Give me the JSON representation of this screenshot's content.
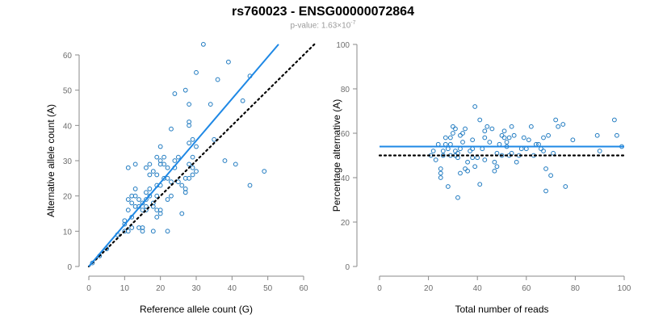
{
  "title": "rs760023 - ENSG00000072864",
  "subtitle": {
    "prefix": "p-value: 1.63×10",
    "exponent": "-7"
  },
  "colors": {
    "points": "#1f7ac0",
    "fit_line": "#1e88e5",
    "reference_line": "#000000",
    "axis": "#8a8a8a"
  },
  "chart_data": [
    {
      "type": "scatter",
      "xlabel": "Reference allele count (G)",
      "ylabel": "Alternative allele count (A)",
      "xlim": [
        0,
        60
      ],
      "ylim": [
        0,
        60
      ],
      "xticks": [
        "0",
        "10",
        "20",
        "30",
        "40",
        "50",
        "60"
      ],
      "yticks": [
        "0",
        "10",
        "20",
        "30",
        "40",
        "50",
        "60"
      ],
      "fit_line": {
        "style": "solid",
        "x": [
          0,
          53
        ],
        "y": [
          0,
          63
        ]
      },
      "reference_line": {
        "style": "dotted",
        "x": [
          0,
          63
        ],
        "y": [
          0,
          63
        ]
      },
      "points": [
        [
          1,
          1
        ],
        [
          3,
          3
        ],
        [
          5,
          5
        ],
        [
          8,
          9
        ],
        [
          10,
          10
        ],
        [
          10,
          12
        ],
        [
          10,
          13
        ],
        [
          11,
          10
        ],
        [
          11,
          16
        ],
        [
          11,
          19
        ],
        [
          11,
          28
        ],
        [
          12,
          11
        ],
        [
          12,
          14
        ],
        [
          12,
          18
        ],
        [
          12,
          20
        ],
        [
          13,
          17
        ],
        [
          13,
          20
        ],
        [
          13,
          22
        ],
        [
          13,
          29
        ],
        [
          14,
          11
        ],
        [
          14,
          17
        ],
        [
          14,
          19
        ],
        [
          15,
          10
        ],
        [
          15,
          11
        ],
        [
          15,
          16
        ],
        [
          15,
          18
        ],
        [
          16,
          16
        ],
        [
          16,
          17
        ],
        [
          16,
          19
        ],
        [
          16,
          21
        ],
        [
          16,
          28
        ],
        [
          17,
          20
        ],
        [
          17,
          22
        ],
        [
          17,
          26
        ],
        [
          17,
          29
        ],
        [
          18,
          10
        ],
        [
          18,
          17
        ],
        [
          18,
          18
        ],
        [
          18,
          27
        ],
        [
          19,
          14
        ],
        [
          19,
          16
        ],
        [
          19,
          20
        ],
        [
          19,
          23
        ],
        [
          19,
          26
        ],
        [
          19,
          31
        ],
        [
          20,
          15
        ],
        [
          20,
          16
        ],
        [
          20,
          23
        ],
        [
          20,
          29
        ],
        [
          20,
          30
        ],
        [
          20,
          34
        ],
        [
          21,
          25
        ],
        [
          21,
          29
        ],
        [
          21,
          31
        ],
        [
          22,
          10
        ],
        [
          22,
          19
        ],
        [
          22,
          25
        ],
        [
          22,
          28
        ],
        [
          23,
          20
        ],
        [
          23,
          24
        ],
        [
          23,
          39
        ],
        [
          24,
          28
        ],
        [
          24,
          30
        ],
        [
          24,
          49
        ],
        [
          25,
          24
        ],
        [
          25,
          31
        ],
        [
          26,
          15
        ],
        [
          26,
          23
        ],
        [
          27,
          21
        ],
        [
          27,
          22
        ],
        [
          27,
          25
        ],
        [
          27,
          50
        ],
        [
          28,
          25
        ],
        [
          28,
          29
        ],
        [
          28,
          35
        ],
        [
          28,
          40
        ],
        [
          28,
          41
        ],
        [
          28,
          46
        ],
        [
          29,
          26
        ],
        [
          29,
          28
        ],
        [
          29,
          31
        ],
        [
          29,
          36
        ],
        [
          30,
          27
        ],
        [
          30,
          34
        ],
        [
          30,
          55
        ],
        [
          32,
          63
        ],
        [
          34,
          46
        ],
        [
          35,
          36
        ],
        [
          36,
          53
        ],
        [
          38,
          30
        ],
        [
          39,
          58
        ],
        [
          41,
          29
        ],
        [
          43,
          47
        ],
        [
          45,
          23
        ],
        [
          45,
          54
        ],
        [
          49,
          27
        ]
      ]
    },
    {
      "type": "scatter",
      "xlabel": "Total number of reads",
      "ylabel": "Percentage alternative (A)",
      "xlim": [
        0,
        100
      ],
      "ylim": [
        0,
        100
      ],
      "xticks": [
        "0",
        "20",
        "40",
        "60",
        "80",
        "100"
      ],
      "yticks": [
        "0",
        "20",
        "40",
        "60",
        "80",
        "100"
      ],
      "fit_line": {
        "style": "solid",
        "x": [
          0,
          100
        ],
        "y": [
          54,
          54
        ]
      },
      "reference_line": {
        "style": "dotted",
        "x": [
          0,
          100
        ],
        "y": [
          50,
          50
        ]
      },
      "points": [
        [
          21,
          50
        ],
        [
          22,
          52
        ],
        [
          23,
          48
        ],
        [
          24,
          55
        ],
        [
          25,
          40
        ],
        [
          25,
          42
        ],
        [
          25,
          44
        ],
        [
          26,
          50
        ],
        [
          26,
          52
        ],
        [
          27,
          55
        ],
        [
          27,
          58
        ],
        [
          28,
          36
        ],
        [
          28,
          53
        ],
        [
          29,
          50
        ],
        [
          29,
          55
        ],
        [
          29,
          58
        ],
        [
          30,
          60
        ],
        [
          30,
          63
        ],
        [
          31,
          50
        ],
        [
          31,
          52
        ],
        [
          31,
          62
        ],
        [
          32,
          31
        ],
        [
          32,
          49
        ],
        [
          32,
          51
        ],
        [
          33,
          42
        ],
        [
          33,
          53
        ],
        [
          33,
          59
        ],
        [
          34,
          56
        ],
        [
          34,
          60
        ],
        [
          35,
          44
        ],
        [
          35,
          62
        ],
        [
          36,
          43
        ],
        [
          36,
          47
        ],
        [
          37,
          52
        ],
        [
          38,
          49
        ],
        [
          38,
          53
        ],
        [
          38,
          57
        ],
        [
          39,
          45
        ],
        [
          39,
          72
        ],
        [
          40,
          49
        ],
        [
          41,
          37
        ],
        [
          41,
          66
        ],
        [
          42,
          53
        ],
        [
          43,
          48
        ],
        [
          43,
          58
        ],
        [
          43,
          61
        ],
        [
          44,
          63
        ],
        [
          45,
          56
        ],
        [
          46,
          62
        ],
        [
          47,
          43
        ],
        [
          47,
          47
        ],
        [
          48,
          45
        ],
        [
          48,
          51
        ],
        [
          49,
          55
        ],
        [
          50,
          50
        ],
        [
          50,
          59
        ],
        [
          51,
          58
        ],
        [
          51,
          61
        ],
        [
          52,
          54
        ],
        [
          52,
          56
        ],
        [
          53,
          50
        ],
        [
          53,
          58
        ],
        [
          54,
          51
        ],
        [
          54,
          63
        ],
        [
          55,
          59
        ],
        [
          56,
          47
        ],
        [
          57,
          50
        ],
        [
          58,
          53
        ],
        [
          59,
          58
        ],
        [
          60,
          53
        ],
        [
          61,
          57
        ],
        [
          62,
          63
        ],
        [
          63,
          50
        ],
        [
          64,
          55
        ],
        [
          65,
          55
        ],
        [
          66,
          53
        ],
        [
          67,
          52
        ],
        [
          67,
          58
        ],
        [
          68,
          34
        ],
        [
          68,
          44
        ],
        [
          69,
          59
        ],
        [
          70,
          41
        ],
        [
          71,
          51
        ],
        [
          72,
          66
        ],
        [
          73,
          63
        ],
        [
          75,
          64
        ],
        [
          76,
          36
        ],
        [
          79,
          57
        ],
        [
          89,
          59
        ],
        [
          90,
          52
        ],
        [
          96,
          66
        ],
        [
          97,
          59
        ],
        [
          99,
          54
        ]
      ]
    }
  ]
}
